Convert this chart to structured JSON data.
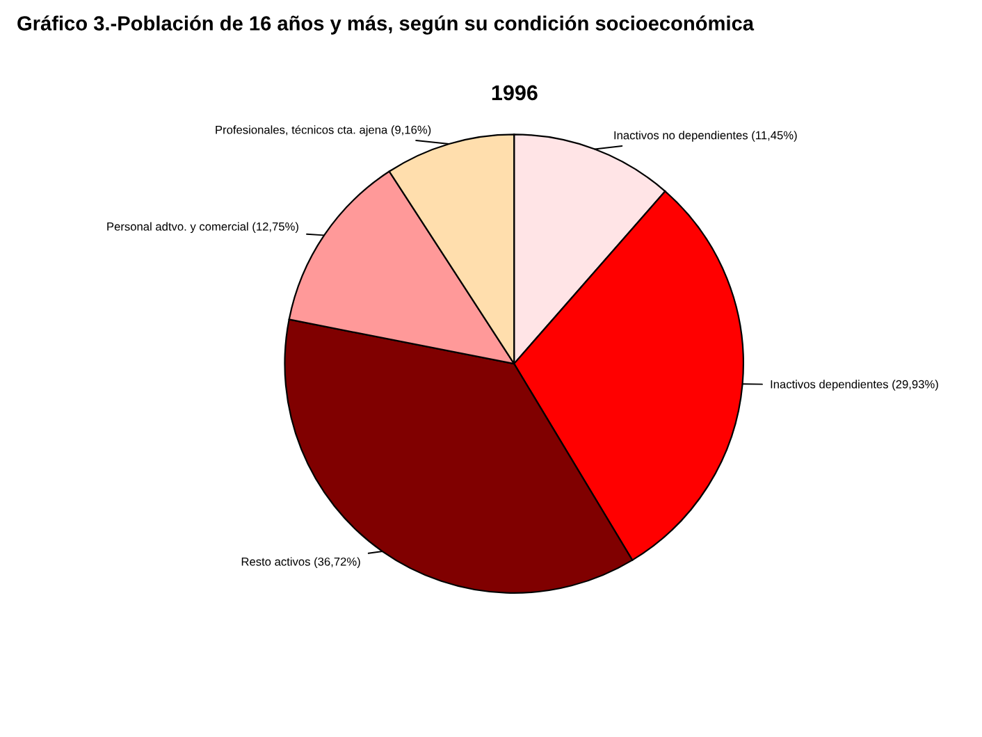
{
  "chart_data": {
    "type": "pie",
    "title": "1996",
    "subtitle": "Gráfico 3.-Población de 16 años y más, según su condición socioeconómica",
    "categories": [
      "Inactivos no dependientes (11,45%)",
      "Inactivos dependientes (29,93%)",
      "Resto activos (36,72%)",
      "Personal adtvo. y comercial (12,75%)",
      "Profesionales, técnicos cta. ajena (9,16%)"
    ],
    "values": [
      11.45,
      29.93,
      36.72,
      12.75,
      9.16
    ],
    "colors": [
      "#ffe4e6",
      "#ff0000",
      "#800000",
      "#ff9999",
      "#ffdead"
    ]
  }
}
